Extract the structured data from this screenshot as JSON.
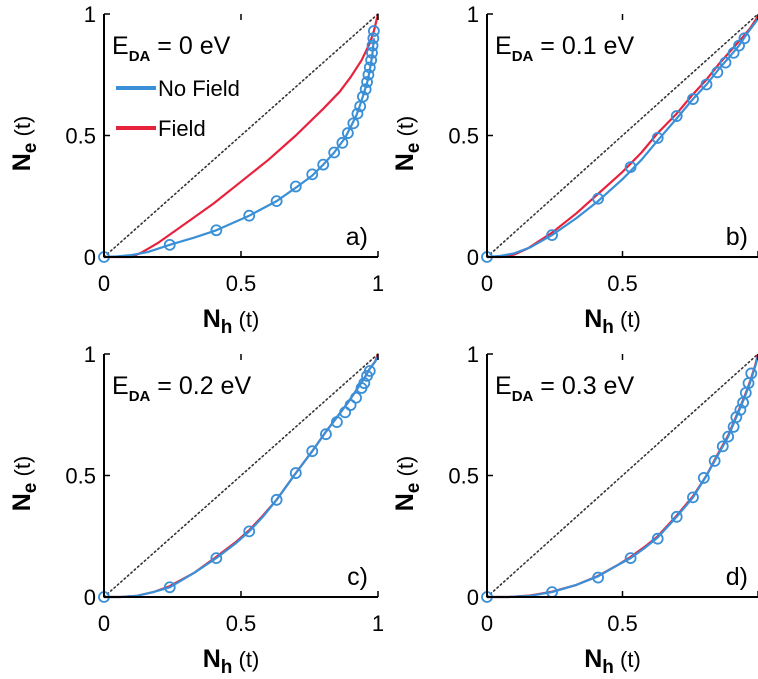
{
  "colors": {
    "no_field": "#3a8fd6",
    "field": "#e8213d",
    "diagonal": "#333333",
    "axis": "#000000"
  },
  "legend": {
    "no_field": "No Field",
    "field": "Field"
  },
  "axis_labels": {
    "x_main": "N",
    "x_sub": "h",
    "x_arg": "(t)",
    "y_main": "N",
    "y_sub": "e",
    "y_arg": "(t)"
  },
  "edA": {
    "main": "E",
    "sub": "DA"
  },
  "chart_data": [
    {
      "type": "line",
      "panel_label": "a)",
      "edA_value": " = 0 eV",
      "xlim": [
        0,
        1
      ],
      "ylim": [
        0,
        1
      ],
      "x_ticks": [
        "0",
        "0.5",
        "1"
      ],
      "y_ticks": [
        "0",
        "0.5",
        "1"
      ],
      "diagonal": true,
      "series": [
        {
          "name": "No Field",
          "color": "#3a8fd6",
          "markers": true,
          "x": [
            0,
            0.05,
            0.1,
            0.16,
            0.24,
            0.33,
            0.41,
            0.48,
            0.53,
            0.58,
            0.63,
            0.7,
            0.76,
            0.8,
            0.84,
            0.88,
            0.9,
            0.92,
            0.93,
            0.94,
            0.95,
            0.96,
            0.965,
            0.97,
            0.975,
            0.98,
            0.985
          ],
          "y": [
            0,
            0.003,
            0.008,
            0.02,
            0.05,
            0.08,
            0.11,
            0.145,
            0.17,
            0.2,
            0.23,
            0.285,
            0.335,
            0.38,
            0.43,
            0.49,
            0.535,
            0.58,
            0.61,
            0.645,
            0.68,
            0.715,
            0.74,
            0.77,
            0.8,
            0.84,
            0.9
          ],
          "marker_x": [
            0,
            0.24,
            0.41,
            0.53,
            0.63,
            0.7,
            0.76,
            0.8,
            0.84,
            0.87,
            0.89,
            0.91,
            0.925,
            0.935,
            0.945,
            0.955,
            0.96,
            0.965,
            0.97,
            0.975,
            0.978,
            0.98,
            0.983,
            0.985
          ],
          "marker_y": [
            0,
            0.05,
            0.11,
            0.17,
            0.23,
            0.29,
            0.34,
            0.38,
            0.43,
            0.47,
            0.51,
            0.55,
            0.59,
            0.62,
            0.66,
            0.69,
            0.72,
            0.75,
            0.78,
            0.81,
            0.84,
            0.87,
            0.9,
            0.93
          ]
        },
        {
          "name": "Field",
          "color": "#e8213d",
          "markers": false,
          "x": [
            0,
            0.05,
            0.1,
            0.14,
            0.2,
            0.3,
            0.4,
            0.5,
            0.6,
            0.7,
            0.8,
            0.86,
            0.9,
            0.94,
            0.97,
            0.985,
            1.0
          ],
          "y": [
            0,
            0.0,
            0.0,
            0.02,
            0.06,
            0.14,
            0.22,
            0.31,
            0.4,
            0.5,
            0.61,
            0.68,
            0.74,
            0.81,
            0.88,
            0.93,
            1.0
          ]
        }
      ]
    },
    {
      "type": "line",
      "panel_label": "b)",
      "edA_value": " = 0.1 eV",
      "xlim": [
        0,
        1
      ],
      "ylim": [
        0,
        1
      ],
      "x_ticks": [
        "0",
        "0.5",
        ""
      ],
      "y_ticks": [
        "0",
        "0.5",
        "1"
      ],
      "diagonal": true,
      "series": [
        {
          "name": "No Field",
          "color": "#3a8fd6",
          "markers": true,
          "x": [
            0,
            0.05,
            0.1,
            0.16,
            0.24,
            0.33,
            0.41,
            0.5,
            0.57,
            0.63,
            0.7,
            0.76,
            0.81,
            0.86,
            0.9,
            0.93,
            0.96,
            0.98,
            1.0
          ],
          "y": [
            0,
            0.005,
            0.015,
            0.04,
            0.09,
            0.16,
            0.23,
            0.32,
            0.4,
            0.48,
            0.57,
            0.65,
            0.71,
            0.78,
            0.83,
            0.87,
            0.92,
            0.95,
            0.98
          ],
          "marker_x": [
            0,
            0.24,
            0.41,
            0.53,
            0.63,
            0.7,
            0.76,
            0.81,
            0.85,
            0.88,
            0.91,
            0.93,
            0.95
          ],
          "marker_y": [
            0,
            0.09,
            0.24,
            0.37,
            0.49,
            0.58,
            0.65,
            0.71,
            0.76,
            0.8,
            0.84,
            0.87,
            0.9
          ]
        },
        {
          "name": "Field",
          "color": "#e8213d",
          "markers": false,
          "x": [
            0,
            0.05,
            0.1,
            0.15,
            0.24,
            0.33,
            0.41,
            0.5,
            0.57,
            0.63,
            0.7,
            0.76,
            0.81,
            0.86,
            0.9,
            0.94,
            0.97,
            1.0
          ],
          "y": [
            0,
            0.0,
            0.01,
            0.035,
            0.1,
            0.18,
            0.26,
            0.35,
            0.43,
            0.51,
            0.59,
            0.67,
            0.73,
            0.8,
            0.85,
            0.9,
            0.94,
            0.99
          ]
        }
      ]
    },
    {
      "type": "line",
      "panel_label": "c)",
      "edA_value": " = 0.2 eV",
      "xlim": [
        0,
        1
      ],
      "ylim": [
        0,
        1
      ],
      "x_ticks": [
        "0",
        "0.5",
        "1"
      ],
      "y_ticks": [
        "0",
        "0.5",
        "1"
      ],
      "diagonal": true,
      "series": [
        {
          "name": "No Field",
          "color": "#3a8fd6",
          "markers": true,
          "x": [
            0,
            0.06,
            0.12,
            0.18,
            0.24,
            0.33,
            0.41,
            0.48,
            0.53,
            0.58,
            0.63,
            0.7,
            0.76,
            0.81,
            0.85,
            0.89,
            0.92,
            0.95,
            0.97,
            0.99,
            1.0
          ],
          "y": [
            0,
            0.0,
            0.005,
            0.02,
            0.04,
            0.1,
            0.16,
            0.22,
            0.27,
            0.33,
            0.4,
            0.51,
            0.6,
            0.68,
            0.74,
            0.8,
            0.85,
            0.9,
            0.94,
            0.97,
            0.99
          ],
          "marker_x": [
            0,
            0.24,
            0.41,
            0.53,
            0.63,
            0.7,
            0.76,
            0.81,
            0.85,
            0.88,
            0.9,
            0.92,
            0.94,
            0.95,
            0.96,
            0.97
          ],
          "marker_y": [
            0,
            0.04,
            0.16,
            0.27,
            0.4,
            0.51,
            0.6,
            0.67,
            0.72,
            0.76,
            0.79,
            0.82,
            0.86,
            0.88,
            0.91,
            0.93
          ]
        },
        {
          "name": "Field",
          "color": "#e8213d",
          "markers": false,
          "x": [
            0,
            0.06,
            0.12,
            0.18,
            0.24,
            0.33,
            0.41,
            0.48,
            0.53,
            0.58,
            0.63,
            0.7,
            0.76,
            0.81,
            0.85,
            0.89,
            0.92,
            0.95,
            0.97,
            0.99,
            1.0
          ],
          "y": [
            0,
            0.0,
            0.005,
            0.02,
            0.045,
            0.1,
            0.165,
            0.225,
            0.275,
            0.335,
            0.4,
            0.51,
            0.6,
            0.68,
            0.74,
            0.8,
            0.85,
            0.9,
            0.94,
            0.97,
            1.0
          ]
        }
      ]
    },
    {
      "type": "line",
      "panel_label": "d)",
      "edA_value": " = 0.3 eV",
      "xlim": [
        0,
        1
      ],
      "ylim": [
        0,
        1
      ],
      "x_ticks": [
        "0",
        "0.5",
        ""
      ],
      "y_ticks": [
        "0",
        "0.5",
        "1"
      ],
      "diagonal": true,
      "series": [
        {
          "name": "No Field",
          "color": "#3a8fd6",
          "markers": true,
          "x": [
            0,
            0.08,
            0.16,
            0.24,
            0.33,
            0.41,
            0.48,
            0.53,
            0.58,
            0.63,
            0.7,
            0.76,
            0.81,
            0.85,
            0.89,
            0.92,
            0.95,
            0.97,
            0.99,
            1.0
          ],
          "y": [
            0,
            0.0,
            0.005,
            0.02,
            0.05,
            0.085,
            0.13,
            0.16,
            0.2,
            0.245,
            0.33,
            0.41,
            0.5,
            0.58,
            0.66,
            0.74,
            0.82,
            0.88,
            0.95,
            0.99
          ],
          "marker_x": [
            0,
            0.24,
            0.41,
            0.53,
            0.63,
            0.7,
            0.76,
            0.8,
            0.84,
            0.87,
            0.89,
            0.91,
            0.92,
            0.935,
            0.945,
            0.955,
            0.965,
            0.975
          ],
          "marker_y": [
            0,
            0.02,
            0.08,
            0.16,
            0.24,
            0.33,
            0.41,
            0.49,
            0.56,
            0.62,
            0.66,
            0.7,
            0.74,
            0.77,
            0.8,
            0.84,
            0.88,
            0.92
          ]
        },
        {
          "name": "Field",
          "color": "#e8213d",
          "markers": false,
          "x": [
            0,
            0.08,
            0.16,
            0.24,
            0.33,
            0.41,
            0.48,
            0.53,
            0.58,
            0.63,
            0.7,
            0.76,
            0.81,
            0.85,
            0.89,
            0.92,
            0.95,
            0.97,
            0.99,
            1.0
          ],
          "y": [
            0,
            0.0,
            0.006,
            0.022,
            0.05,
            0.087,
            0.13,
            0.165,
            0.205,
            0.25,
            0.335,
            0.415,
            0.5,
            0.585,
            0.665,
            0.745,
            0.825,
            0.885,
            0.955,
            1.0
          ]
        }
      ]
    }
  ]
}
